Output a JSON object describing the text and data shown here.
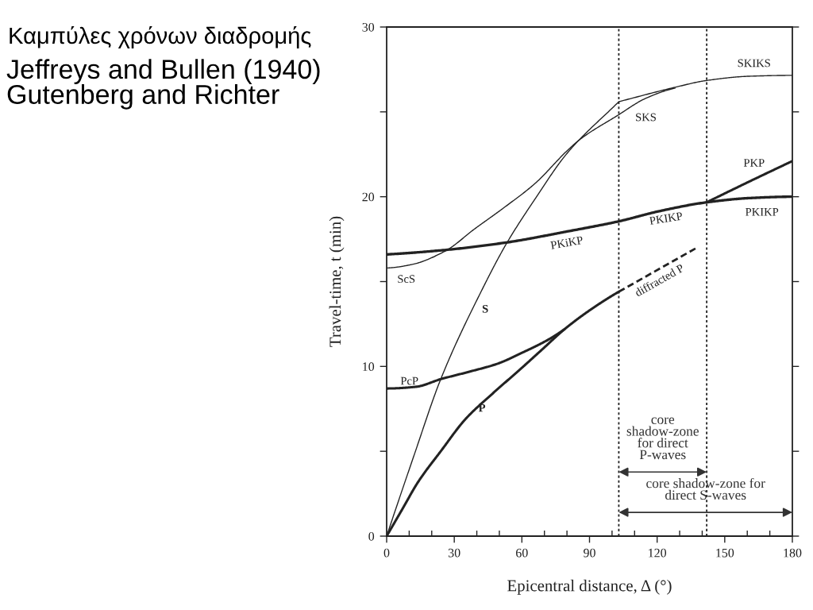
{
  "chart_data": {
    "type": "line",
    "title": "Καμπύλες χρόνων διαδρομής",
    "subtitle": "Jeffreys and Bullen (1940)\nGutenberg and Richter",
    "annotations": [
      "core\nshadow-zone\nfor direct\nP-waves",
      {
        "text": "core shadow-zone for\ndirect S-waves",
        "x": 141.5,
        "y": 1.4
      },
      {
        "text": "SKS",
        "x": 115,
        "y": 25.8
      },
      {
        "text": "SKIKS",
        "x": 163,
        "y": 27.1
      },
      {
        "text": "PKiKP",
        "x": 80,
        "y": 17.95
      },
      {
        "text": "PKIKP",
        "x": 124,
        "y": 19.25
      }
    ],
    "xlabel": "Epicentral distance, Δ (°)",
    "ylabel": "Travel-time, t (min)",
    "xlim": [
      0,
      180
    ],
    "ylim": [
      0,
      30
    ],
    "xticks": [
      0,
      {
        "value": 10,
        "label": null
      },
      {
        "value": 20,
        "label": null
      },
      30,
      {
        "value": 40,
        "label": null
      },
      {
        "value": 50,
        "label": null
      },
      60,
      {
        "value": 70,
        "label": null
      },
      {
        "value": 80,
        "label": null
      },
      90,
      {
        "value": 100,
        "label": null
      },
      {
        "value": 110,
        "label": null
      },
      120,
      {
        "value": 130,
        "label": null
      },
      {
        "value": 140,
        "label": null
      },
      150,
      {
        "value": 160,
        "label": null
      },
      {
        "value": 170,
        "label": null
      },
      180
    ],
    "yticks": [
      0,
      {
        "value": 5,
        "label": null
      },
      10,
      {
        "value": 15,
        "label": null
      },
      20,
      {
        "value": 25,
        "label": null
      },
      30
    ],
    "series": [
      {
        "name": "P",
        "color": "#222222",
        "x": [
          0,
          7,
          14,
          24,
          35,
          47,
          59,
          69,
          79,
          90,
          103
        ],
        "values": [
          0,
          1.6,
          3.2,
          5.0,
          6.9,
          8.4,
          9.8,
          11.0,
          12.2,
          13.3,
          14.4
        ]
      },
      {
        "name": "diffracted P",
        "color": "#222222",
        "line_style": "dashed",
        "x": [
          103,
          137
        ],
        "values": [
          14.4,
          16.95
        ]
      },
      {
        "name": "PcP",
        "color": "#222222",
        "x": [
          0,
          13,
          24,
          37,
          49,
          60,
          72,
          79
        ],
        "values": [
          8.7,
          8.8,
          9.25,
          9.7,
          10.15,
          10.8,
          11.6,
          12.2
        ]
      },
      {
        "name": "S",
        "color": "#222222",
        "x": [
          0,
          12,
          24,
          43,
          53,
          66,
          80,
          103,
          128,
          142,
          161,
          180
        ],
        "values": [
          0,
          4.7,
          9.25,
          14.7,
          17.2,
          19.9,
          22.55,
          25.6,
          26.45,
          26.85,
          27.1,
          27.15
        ]
      },
      {
        "name": "ScS",
        "color": "#222222",
        "x": [
          0,
          11,
          26,
          39,
          52,
          66,
          80,
          86,
          102,
          115,
          128
        ],
        "values": [
          15.8,
          16.0,
          16.8,
          18.1,
          19.35,
          20.8,
          22.7,
          23.4,
          24.75,
          25.8,
          26.4
        ]
      },
      {
        "name": "PKIKP",
        "color": "#222222",
        "x": [
          0,
          25,
          53,
          80,
          103,
          121,
          142,
          161,
          180
        ],
        "values": [
          16.6,
          16.85,
          17.3,
          17.95,
          18.55,
          19.15,
          19.67,
          19.92,
          20.0
        ]
      },
      {
        "name": "PKP",
        "color": "#222222",
        "x": [
          142,
          161,
          180
        ],
        "values": [
          19.67,
          20.9,
          22.1
        ]
      }
    ],
    "ref_lines": [
      {
        "axis": "x",
        "value": 103,
        "line_style": "dotted",
        "color": "#222222"
      },
      {
        "axis": "x",
        "value": 142,
        "line_style": "dotted",
        "color": "#222222"
      }
    ]
  }
}
